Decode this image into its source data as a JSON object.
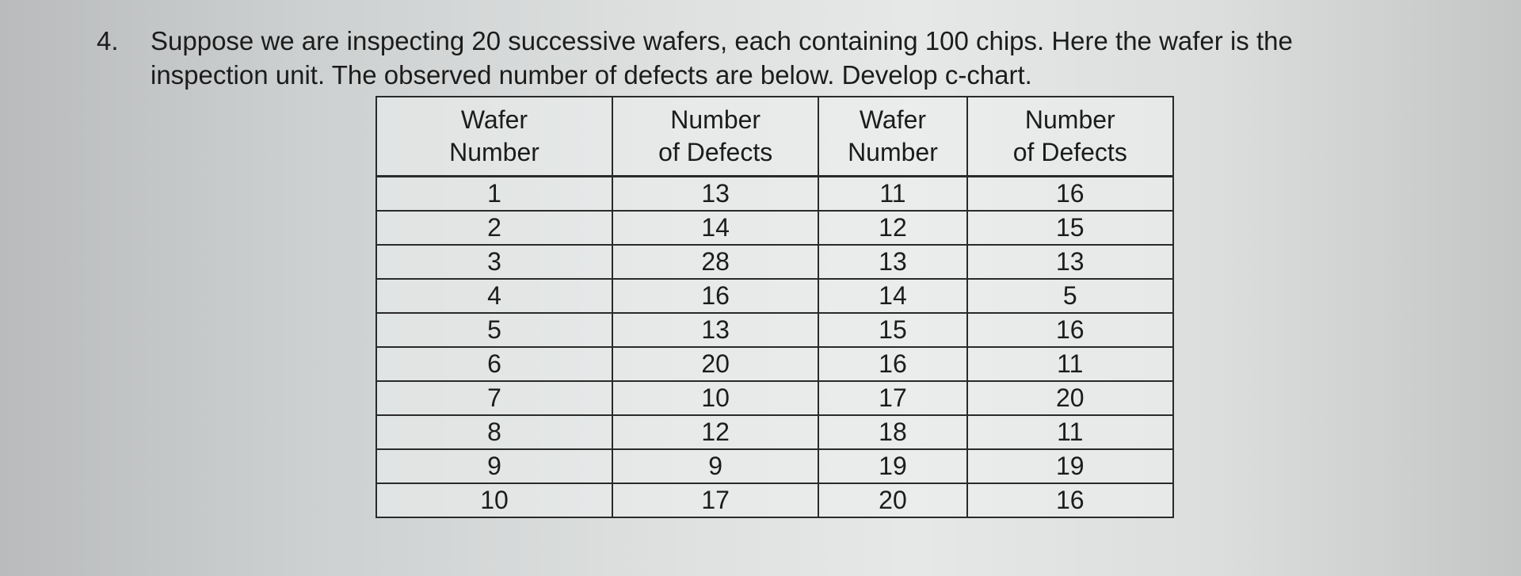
{
  "question": {
    "number": "4.",
    "line1": "Suppose we are inspecting 20 successive wafers, each containing 100 chips. Here the wafer is the",
    "line2": "inspection unit. The observed number of defects are below.  Develop c-chart."
  },
  "table": {
    "headers": [
      [
        "Wafer",
        "Number"
      ],
      [
        "Number",
        "of Defects"
      ],
      [
        "Wafer",
        "Number"
      ],
      [
        "Number",
        "of Defects"
      ]
    ],
    "rows": [
      [
        "1",
        "13",
        "11",
        "16"
      ],
      [
        "2",
        "14",
        "12",
        "15"
      ],
      [
        "3",
        "28",
        "13",
        "13"
      ],
      [
        "4",
        "16",
        "14",
        "5"
      ],
      [
        "5",
        "13",
        "15",
        "16"
      ],
      [
        "6",
        "20",
        "16",
        "11"
      ],
      [
        "7",
        "10",
        "17",
        "20"
      ],
      [
        "8",
        "12",
        "18",
        "11"
      ],
      [
        "9",
        "9",
        "19",
        "19"
      ],
      [
        "10",
        "17",
        "20",
        "16"
      ]
    ]
  }
}
